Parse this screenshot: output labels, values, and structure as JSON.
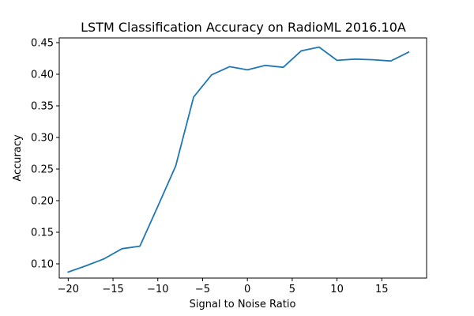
{
  "chart_data": {
    "type": "line",
    "title": "LSTM Classification Accuracy on RadioML 2016.10A",
    "xlabel": "Signal to Noise Ratio",
    "ylabel": "Accuracy",
    "xlim": [
      -21,
      20
    ],
    "ylim": [
      0.0775,
      0.4575
    ],
    "xticks": [
      -20,
      -15,
      -10,
      -5,
      0,
      5,
      10,
      15
    ],
    "xtick_labels": [
      "−20",
      "−15",
      "−10",
      "−5",
      "0",
      "5",
      "10",
      "15"
    ],
    "yticks": [
      0.1,
      0.15,
      0.2,
      0.25,
      0.3,
      0.35,
      0.4,
      0.45
    ],
    "ytick_labels": [
      "0.10",
      "0.15",
      "0.20",
      "0.25",
      "0.30",
      "0.35",
      "0.40",
      "0.45"
    ],
    "grid": false,
    "legend": "none",
    "series": [
      {
        "color": "#1f77b4",
        "x": [
          -20,
          -18,
          -16,
          -14,
          -12,
          -10,
          -8,
          -6,
          -4,
          -2,
          0,
          2,
          4,
          6,
          8,
          10,
          12,
          14,
          16,
          18
        ],
        "y": [
          0.087,
          0.097,
          0.108,
          0.124,
          0.128,
          0.191,
          0.255,
          0.364,
          0.399,
          0.412,
          0.407,
          0.414,
          0.411,
          0.437,
          0.443,
          0.422,
          0.424,
          0.423,
          0.421,
          0.435
        ]
      }
    ]
  }
}
